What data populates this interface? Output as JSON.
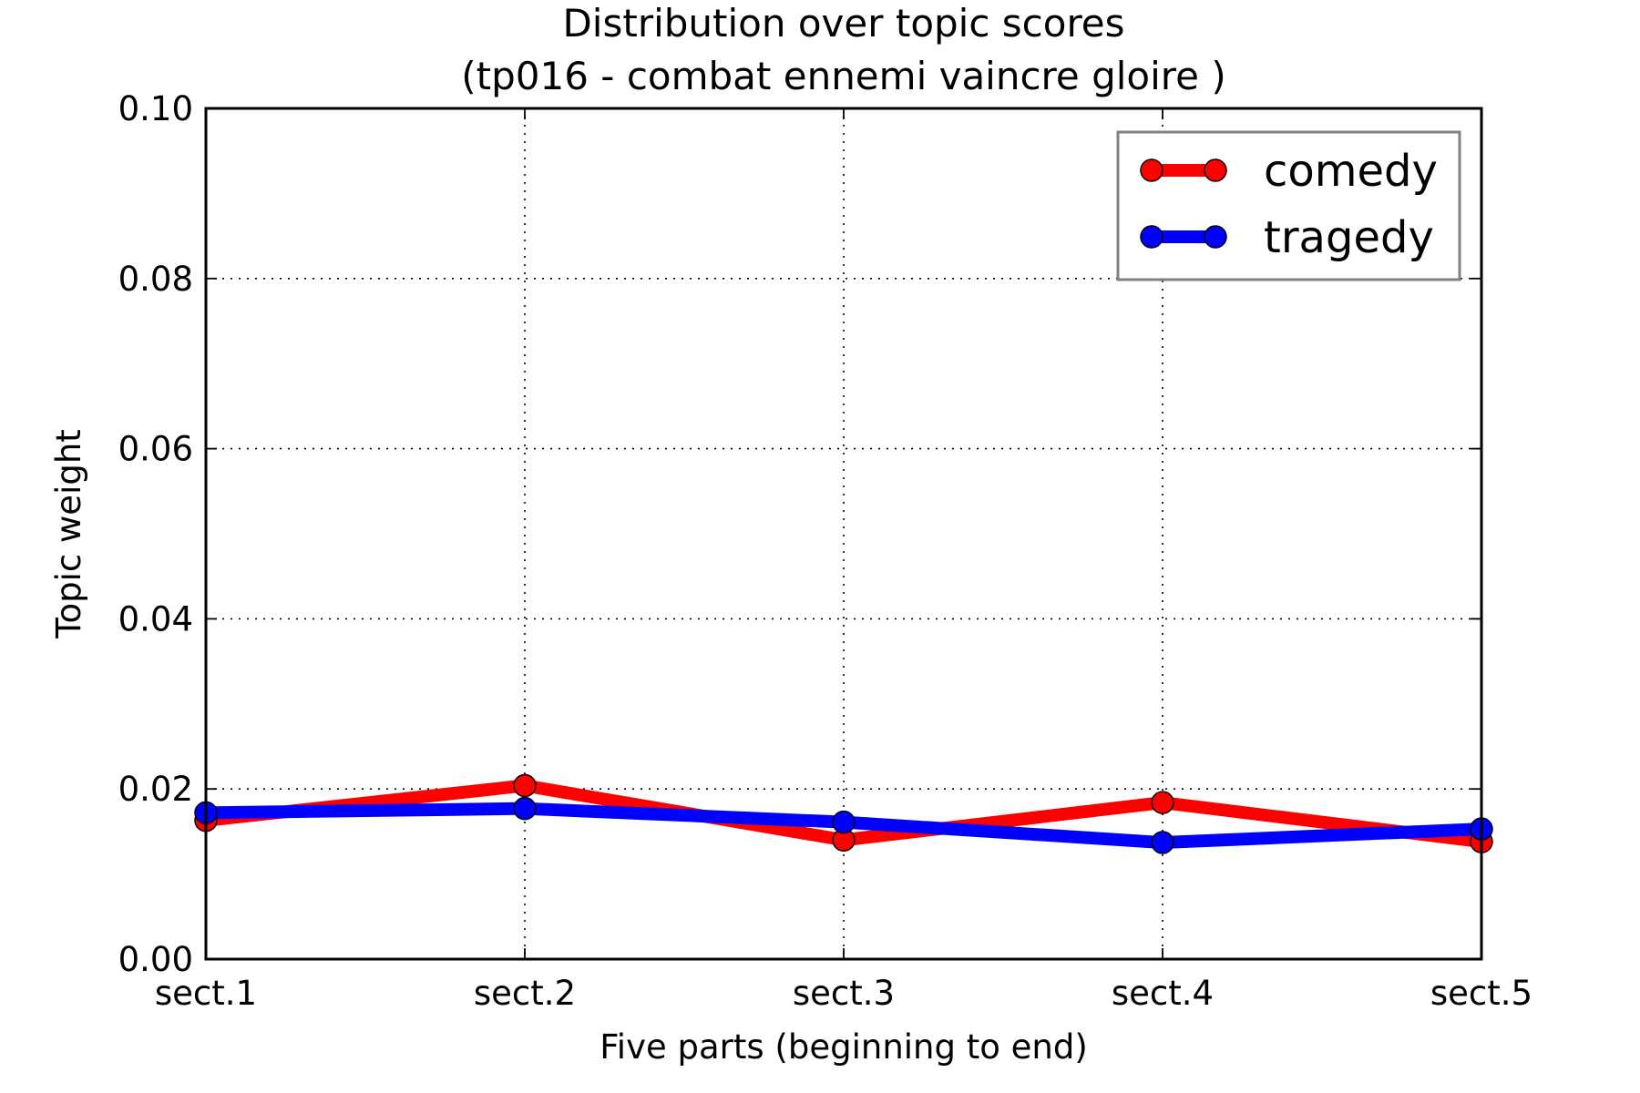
{
  "chart_data": {
    "type": "line",
    "title_line1": "Distribution over topic scores",
    "title_line2": "(tp016 - combat ennemi vaincre gloire )",
    "xlabel": "Five parts (beginning to end)",
    "ylabel": "Topic weight",
    "categories": [
      "sect.1",
      "sect.2",
      "sect.3",
      "sect.4",
      "sect.5"
    ],
    "yticks": [
      "0.00",
      "0.02",
      "0.04",
      "0.06",
      "0.08",
      "0.10"
    ],
    "ylim": [
      0,
      0.1
    ],
    "grid": true,
    "legend_position": "top-right",
    "series": [
      {
        "name": "comedy",
        "color": "#ff0000",
        "values": [
          0.0163,
          0.0204,
          0.014,
          0.0184,
          0.0138
        ]
      },
      {
        "name": "tragedy",
        "color": "#0000ff",
        "values": [
          0.0172,
          0.0177,
          0.0161,
          0.0137,
          0.0153
        ]
      }
    ]
  }
}
